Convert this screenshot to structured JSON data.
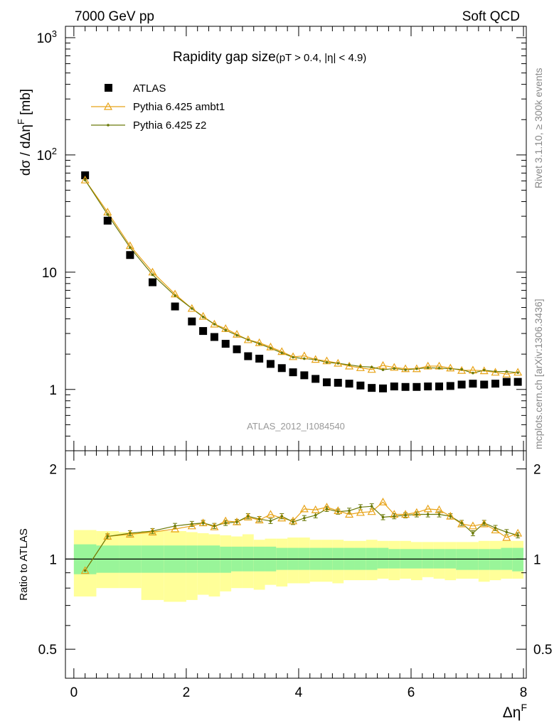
{
  "header": {
    "left": "7000 GeV pp",
    "right": "Soft QCD"
  },
  "main_title": "Rapidity gap size",
  "main_title_cuts": "(pT > 0.4, |η| < 4.9)",
  "side_text_top": "Rivet 3.1.10, ≥ 300k events",
  "side_text_bottom": "mcplots.cern.ch [arXiv:1306.3436]",
  "watermark": "ATLAS_2012_I1084540",
  "colors": {
    "data": "#000000",
    "ambt1": "#e8a317",
    "z2": "#6b7a0a",
    "band_inner": "#99f599",
    "band_outer": "#ffff99"
  },
  "chart_data": [
    {
      "type": "scatter",
      "panel": "main",
      "ylabel": "dσ / dΔη",
      "ylabel_sup": "F",
      "ylabel_unit": " [mb]",
      "yscale": "log",
      "ylim": [
        0.3,
        1250
      ],
      "xlim": [
        -0.15,
        8.05
      ],
      "y_tick_labels": [
        "1",
        "10",
        "10",
        "10"
      ],
      "y_tick_sups": [
        "",
        "",
        "2",
        "3"
      ],
      "x": [
        0.2,
        0.6,
        1.0,
        1.4,
        1.8,
        2.1,
        2.3,
        2.5,
        2.7,
        2.9,
        3.1,
        3.3,
        3.5,
        3.7,
        3.9,
        4.1,
        4.3,
        4.5,
        4.7,
        4.9,
        5.1,
        5.3,
        5.5,
        5.7,
        5.9,
        6.1,
        6.3,
        6.5,
        6.7,
        6.9,
        7.1,
        7.3,
        7.5,
        7.7,
        7.9
      ],
      "legend": [
        "ATLAS",
        "Pythia 6.425 ambt1",
        "Pythia 6.425 z2"
      ],
      "legend_placement": "top-left",
      "series": [
        {
          "name": "ATLAS",
          "values": [
            67,
            27.5,
            14,
            8.2,
            5.1,
            3.8,
            3.15,
            2.8,
            2.45,
            2.2,
            1.92,
            1.83,
            1.65,
            1.52,
            1.4,
            1.32,
            1.23,
            1.15,
            1.14,
            1.12,
            1.08,
            1.03,
            1.02,
            1.06,
            1.05,
            1.05,
            1.06,
            1.06,
            1.07,
            1.1,
            1.12,
            1.1,
            1.12,
            1.16,
            1.16
          ]
        },
        {
          "name": "Pythia 6.425 ambt1",
          "values": [
            61,
            32.5,
            16.8,
            10,
            6.5,
            4.9,
            4.2,
            3.6,
            3.3,
            2.95,
            2.65,
            2.5,
            2.3,
            2.1,
            1.9,
            1.93,
            1.8,
            1.75,
            1.67,
            1.58,
            1.53,
            1.48,
            1.6,
            1.54,
            1.5,
            1.5,
            1.58,
            1.58,
            1.52,
            1.45,
            1.46,
            1.44,
            1.4,
            1.35,
            1.4
          ]
        },
        {
          "name": "Pythia 6.425 z2",
          "values": [
            61,
            31,
            16.2,
            9.5,
            6.3,
            4.9,
            4.15,
            3.6,
            3.2,
            2.9,
            2.65,
            2.45,
            2.25,
            2.05,
            1.88,
            1.83,
            1.8,
            1.7,
            1.67,
            1.62,
            1.57,
            1.55,
            1.47,
            1.51,
            1.47,
            1.5,
            1.53,
            1.52,
            1.5,
            1.48,
            1.38,
            1.46,
            1.42,
            1.42,
            1.39
          ]
        }
      ]
    },
    {
      "type": "line",
      "panel": "ratio",
      "ylabel": "Ratio to ATLAS",
      "yscale": "log",
      "ylim": [
        0.4,
        2.3
      ],
      "y_tick_labels": [
        "0.5",
        "1",
        "2"
      ],
      "x_tick_labels": [
        "0",
        "2",
        "4",
        "6",
        "8"
      ],
      "xlabel": "Δη",
      "xlabel_sup": "F",
      "x": [
        0.2,
        0.6,
        1.0,
        1.4,
        1.8,
        2.1,
        2.3,
        2.5,
        2.7,
        2.9,
        3.1,
        3.3,
        3.5,
        3.7,
        3.9,
        4.1,
        4.3,
        4.5,
        4.7,
        4.9,
        5.1,
        5.3,
        5.5,
        5.7,
        5.9,
        6.1,
        6.3,
        6.5,
        6.7,
        6.9,
        7.1,
        7.3,
        7.5,
        7.7,
        7.9
      ],
      "series": [
        {
          "name": "Pythia 6.425 ambt1",
          "values": [
            0.915,
            1.19,
            1.21,
            1.23,
            1.26,
            1.29,
            1.32,
            1.28,
            1.34,
            1.33,
            1.38,
            1.35,
            1.41,
            1.37,
            1.34,
            1.47,
            1.46,
            1.49,
            1.45,
            1.41,
            1.43,
            1.44,
            1.55,
            1.41,
            1.41,
            1.43,
            1.47,
            1.46,
            1.39,
            1.31,
            1.29,
            1.31,
            1.25,
            1.18,
            1.22
          ]
        },
        {
          "name": "Pythia 6.425 z2",
          "values": [
            0.915,
            1.19,
            1.22,
            1.24,
            1.29,
            1.31,
            1.32,
            1.29,
            1.32,
            1.33,
            1.39,
            1.36,
            1.34,
            1.39,
            1.33,
            1.37,
            1.4,
            1.47,
            1.44,
            1.45,
            1.49,
            1.5,
            1.38,
            1.39,
            1.4,
            1.41,
            1.41,
            1.41,
            1.39,
            1.32,
            1.22,
            1.32,
            1.27,
            1.23,
            1.2
          ]
        }
      ],
      "band_x_edges": [
        0,
        0.4,
        0.8,
        1.2,
        1.6,
        2.0,
        2.2,
        2.4,
        2.6,
        2.8,
        3.0,
        3.2,
        3.4,
        3.6,
        3.8,
        4.0,
        4.2,
        4.4,
        4.6,
        4.8,
        5.0,
        5.2,
        5.4,
        5.6,
        5.8,
        6.0,
        6.2,
        6.4,
        6.6,
        6.8,
        7.0,
        7.2,
        7.4,
        7.6,
        7.8,
        8.0
      ],
      "band_inner_lo": [
        0.89,
        0.9,
        0.9,
        0.9,
        0.9,
        0.9,
        0.9,
        0.9,
        0.9,
        0.91,
        0.91,
        0.91,
        0.91,
        0.92,
        0.92,
        0.92,
        0.92,
        0.92,
        0.92,
        0.92,
        0.92,
        0.92,
        0.93,
        0.93,
        0.93,
        0.93,
        0.93,
        0.93,
        0.93,
        0.92,
        0.92,
        0.92,
        0.92,
        0.92,
        0.91
      ],
      "band_inner_hi": [
        1.12,
        1.11,
        1.11,
        1.11,
        1.11,
        1.11,
        1.11,
        1.11,
        1.1,
        1.1,
        1.1,
        1.1,
        1.1,
        1.09,
        1.09,
        1.09,
        1.09,
        1.09,
        1.09,
        1.09,
        1.09,
        1.09,
        1.09,
        1.08,
        1.08,
        1.08,
        1.08,
        1.08,
        1.08,
        1.08,
        1.08,
        1.08,
        1.08,
        1.09,
        1.09
      ],
      "band_outer_lo": [
        0.75,
        0.8,
        0.8,
        0.73,
        0.72,
        0.73,
        0.76,
        0.75,
        0.78,
        0.8,
        0.8,
        0.79,
        0.82,
        0.81,
        0.83,
        0.83,
        0.84,
        0.84,
        0.83,
        0.85,
        0.85,
        0.85,
        0.86,
        0.85,
        0.86,
        0.85,
        0.87,
        0.86,
        0.85,
        0.86,
        0.86,
        0.84,
        0.85,
        0.86,
        0.86
      ],
      "band_outer_hi": [
        1.25,
        1.24,
        1.23,
        1.24,
        1.24,
        1.23,
        1.22,
        1.21,
        1.2,
        1.19,
        1.21,
        1.16,
        1.17,
        1.17,
        1.18,
        1.18,
        1.16,
        1.16,
        1.16,
        1.15,
        1.15,
        1.16,
        1.15,
        1.15,
        1.15,
        1.14,
        1.14,
        1.14,
        1.14,
        1.14,
        1.14,
        1.15,
        1.15,
        1.15,
        1.15
      ]
    }
  ]
}
